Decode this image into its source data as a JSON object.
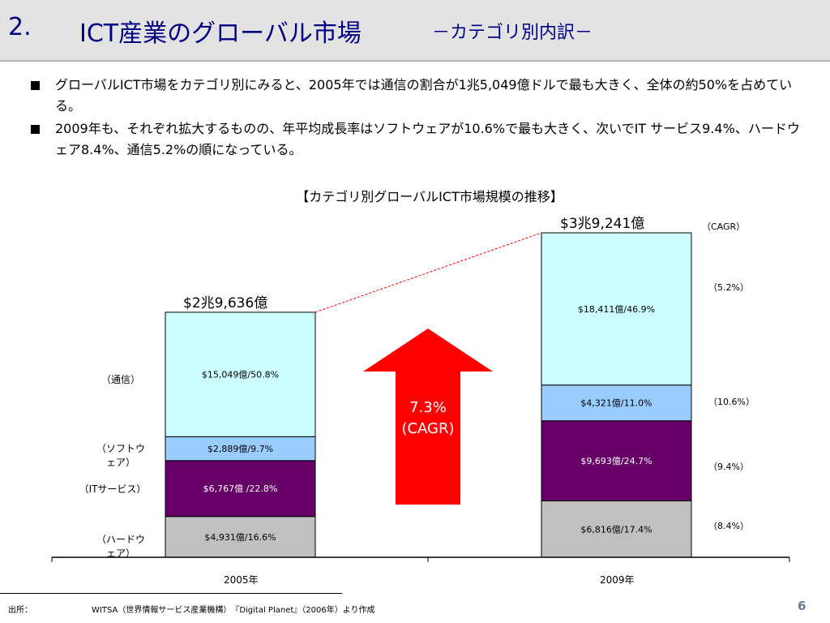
{
  "header": {
    "number": "2.",
    "title": "ICT産業のグローバル市場",
    "subtitle": "－カテゴリ別内訳－"
  },
  "bullets": [
    "グローバルICT市場をカテゴリ別にみると、2005年では通信の割合が1兆5,049億ドルで最も大きく、全体の約50%を占めている。",
    "2009年も、それぞれ拡大するものの、年平均成長率はソフトウェアが10.6%で最も大きく、次いでIT サービス9.4%、ハードウェア8.4%、通信5.2%の順になっている。"
  ],
  "chart_data": {
    "type": "bar",
    "stacked": true,
    "title": "【カテゴリ別グローバルICT市場規模の推移】",
    "categories": [
      "2005年",
      "2009年"
    ],
    "series": [
      {
        "name": "（ハードウェア）",
        "values": [
          4931,
          6816
        ],
        "labels": [
          "$4,931億/16.6%",
          "$6,816億/17.4%"
        ],
        "color": "#c0c0c0",
        "text_color": "#000000"
      },
      {
        "name": "（ITサービス）",
        "values": [
          6767,
          9693
        ],
        "labels": [
          "$6,767億 /22.8%",
          "$9,693億/24.7%"
        ],
        "color": "#660066",
        "text_color": "#ffffff"
      },
      {
        "name": "（ソフトウェア）",
        "values": [
          2889,
          4321
        ],
        "labels": [
          "$2,889億/9.7%",
          "$4,321億/11.0%"
        ],
        "color": "#99ccff",
        "text_color": "#000000"
      },
      {
        "name": "（通信）",
        "values": [
          15049,
          18411
        ],
        "labels": [
          "$15,049億/50.8%",
          "$18,411億/46.9%"
        ],
        "color": "#ccffff",
        "text_color": "#000000"
      }
    ],
    "totals": [
      "$2兆9,636億",
      "$3兆9,241億"
    ],
    "cagr_header": "（CAGR）",
    "cagr": [
      "（8.4%）",
      "（9.4%）",
      "（10.6%）",
      "（5.2%）"
    ],
    "arrow_label": "7.3% (CAGR)",
    "ylim": [
      0,
      39241
    ]
  },
  "footer": {
    "source_label": "出所：",
    "source_text": "WITSA（世界情報サービス産業機構）　『Digital Planet』（2006年）より作成",
    "page": "6"
  },
  "colors": {
    "title": "#000080",
    "arrow": "#ff0000",
    "connector": "#ff0000",
    "page_number": "#6a7a9a"
  }
}
